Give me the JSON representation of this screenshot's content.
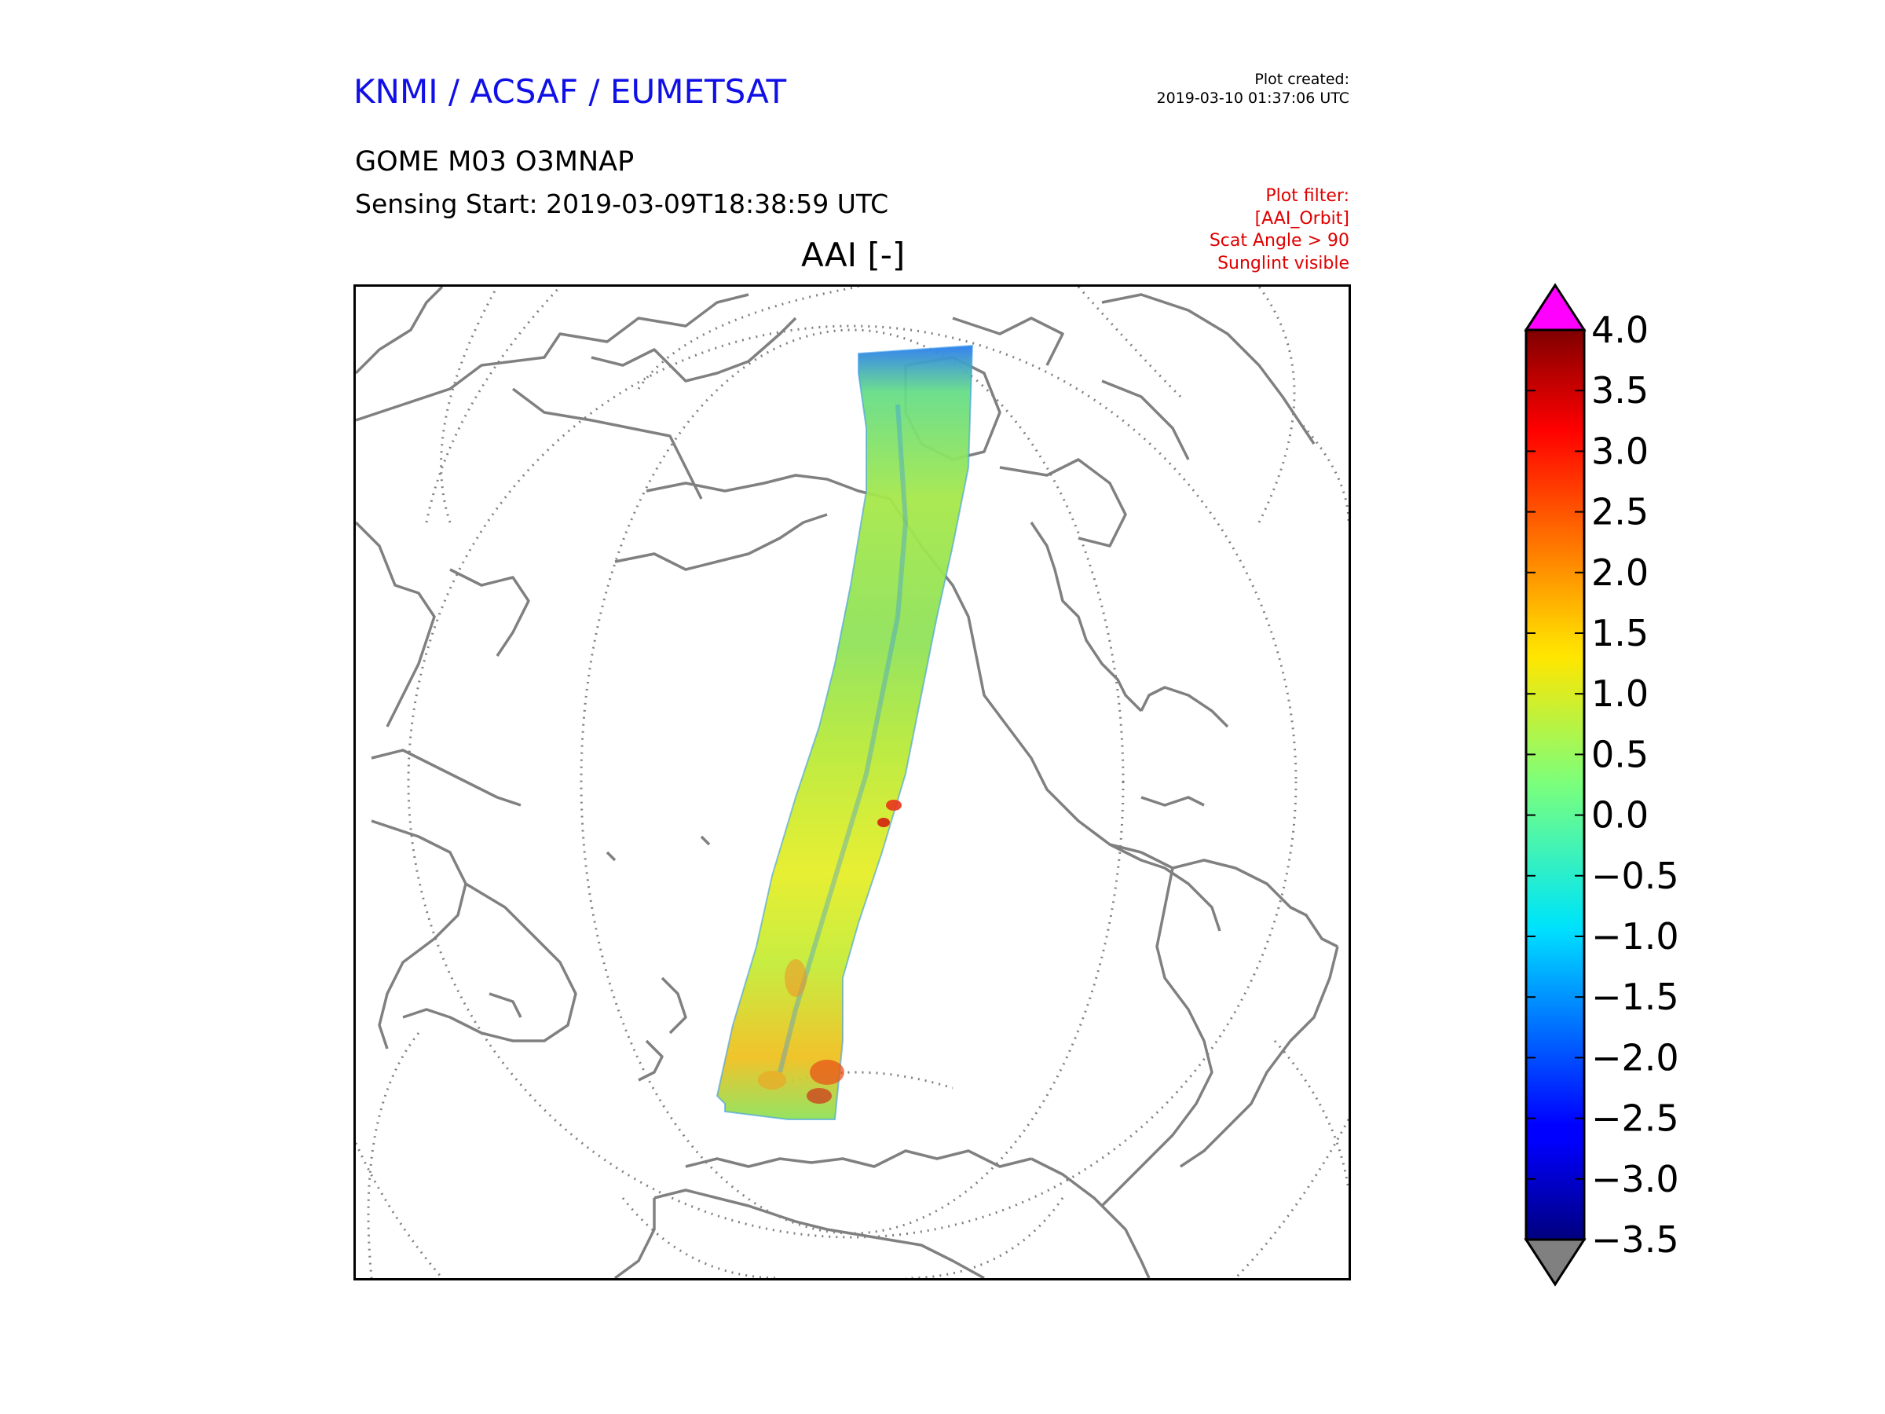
{
  "header": {
    "credit": "KNMI / ACSAF / EUMETSAT",
    "plot_created_label": "Plot created:",
    "plot_created_value": "2019-03-10 01:37:06 UTC",
    "product": "GOME M03 O3MNAP",
    "sensing_start": "Sensing Start: 2019-03-09T18:38:59 UTC",
    "plot_filter": [
      "Plot filter:",
      "[AAI_Orbit]",
      "Scat Angle > 90",
      "Sunglint visible"
    ]
  },
  "map": {
    "title": "AAI [-]",
    "coastline_color": "#808080",
    "graticule_color": "#808080"
  },
  "colorbar": {
    "min": -3.5,
    "max": 4.0,
    "tick_labels": [
      "4.0",
      "3.5",
      "3.0",
      "2.5",
      "2.0",
      "1.5",
      "1.0",
      "0.5",
      "0.0",
      "−0.5",
      "−1.0",
      "−1.5",
      "−2.0",
      "−2.5",
      "−3.0",
      "−3.5"
    ],
    "over_color": "#ff00ff",
    "under_color": "#808080",
    "colormap": "jet"
  }
}
